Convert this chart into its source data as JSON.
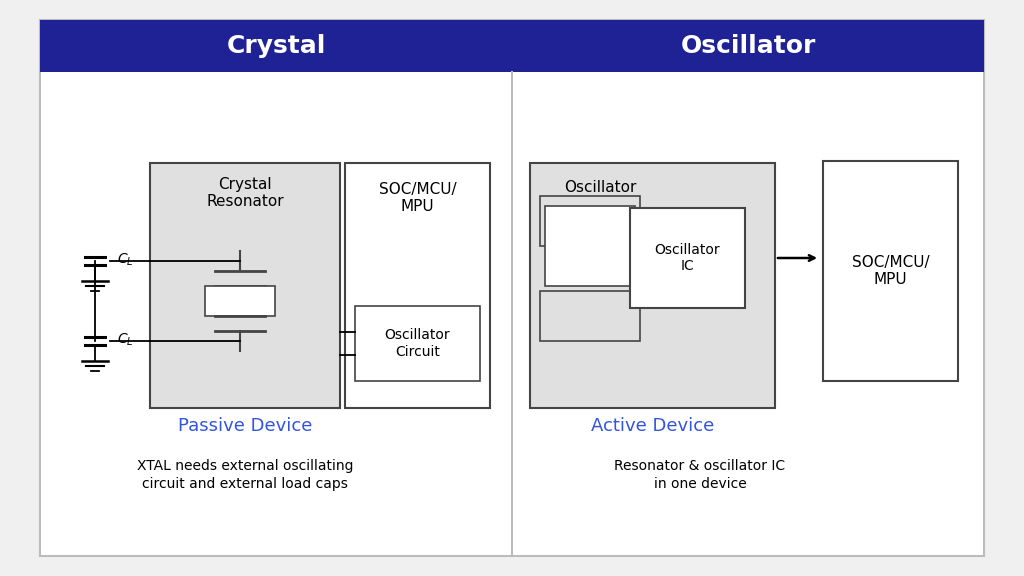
{
  "background_color": "#f0f0f0",
  "inner_bg": "#ffffff",
  "header_bg_color": "#1e2294",
  "header_text_color": "#ffffff",
  "header_left_text": "Crystal",
  "header_right_text": "Oscillator",
  "divider_color": "#bbbbbb",
  "box_fill_light": "#e0e0e0",
  "box_fill_white": "#ffffff",
  "box_edge_color": "#444444",
  "passive_label_color": "#3355dd",
  "active_label_color": "#3355dd",
  "passive_label": "Passive Device",
  "active_label": "Active Device",
  "crystal_desc1": "XTAL needs external oscillating",
  "crystal_desc2": "circuit and external load caps",
  "osc_desc1": "Resonator & oscillator IC",
  "osc_desc2": "in one device",
  "crystal_resonator_label": "Crystal\nResonator",
  "soc_label_left": "SOC/MCU/\nMPU",
  "soc_label_right": "SOC/MCU/\nMPU",
  "osc_circuit_label": "Oscillator\nCircuit",
  "oscillator_label": "Oscillator",
  "osc_ic_label": "Oscillator\nIC"
}
